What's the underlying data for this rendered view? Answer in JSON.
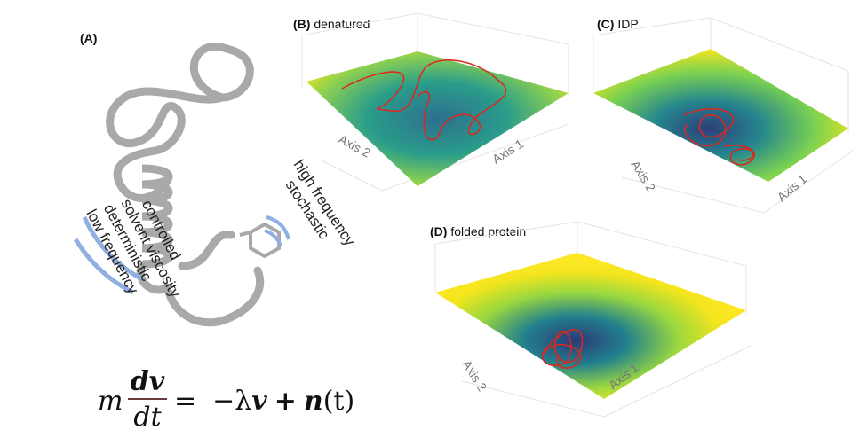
{
  "panels": {
    "a": {
      "label": "(A)",
      "left_text": [
        "low frequency",
        "deterministic",
        "solvent viscosity",
        "controlled"
      ],
      "right_text": [
        "high frequency",
        "stochastic"
      ]
    },
    "b": {
      "label_tag": "(B)",
      "label": "denatured",
      "axis1": "Axis 1",
      "axis2": "Axis 2"
    },
    "c": {
      "label_tag": "(C)",
      "label": "IDP",
      "axis1": "Axis 1",
      "axis2": "Axis 2"
    },
    "d": {
      "label_tag": "(D)",
      "label": "folded protein",
      "axis1": "Axis 1",
      "axis2": "Axis 2"
    }
  },
  "equation": {
    "mass": "m",
    "numerator": "dv",
    "denominator": "dt",
    "equals": "=",
    "friction": "−λ",
    "velocity": "v",
    "plus": "+",
    "noise": "n",
    "time": "(t)"
  }
}
